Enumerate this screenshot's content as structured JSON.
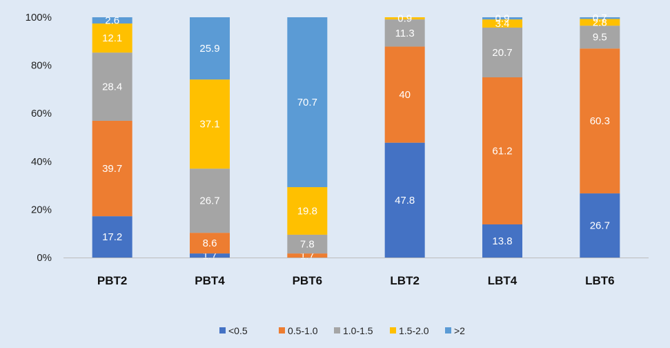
{
  "chart_data": {
    "type": "bar",
    "stacked": true,
    "percent": true,
    "categories": [
      "PBT2",
      "PBT4",
      "PBT6",
      "LBT2",
      "LBT4",
      "LBT6"
    ],
    "series": [
      {
        "name": "<0.5",
        "color": "#4472c4",
        "values": [
          17.2,
          1.7,
          0.0,
          47.8,
          13.8,
          26.7
        ]
      },
      {
        "name": "0.5-1.0",
        "color": "#ed7d31",
        "values": [
          39.7,
          8.6,
          1.7,
          40.0,
          61.2,
          60.3
        ]
      },
      {
        "name": "1.0-1.5",
        "color": "#a5a5a5",
        "values": [
          28.4,
          26.7,
          7.8,
          11.3,
          20.7,
          9.5
        ]
      },
      {
        "name": "1.5-2.0",
        "color": "#ffc000",
        "values": [
          12.1,
          37.1,
          19.8,
          0.9,
          3.4,
          2.8
        ]
      },
      {
        "name": ">2",
        "color": "#5b9bd5",
        "values": [
          2.6,
          25.9,
          70.7,
          0.0,
          0.9,
          0.7
        ]
      }
    ],
    "data_labels": [
      [
        "17.2",
        "39.7",
        "28.4",
        "12.1",
        "2.6"
      ],
      [
        "1.7",
        "8.6",
        "26.7",
        "37.1",
        "25.9"
      ],
      [
        null,
        "1.7",
        "7.8",
        "19.8",
        "70.7"
      ],
      [
        "47.8",
        "40",
        "11.3",
        "0.9",
        null
      ],
      [
        "13.8",
        "61.2",
        "20.7",
        "3.4",
        "0.9"
      ],
      [
        "26.7",
        "60.3",
        "9.5",
        "2.8",
        "0.7"
      ]
    ],
    "yticks": [
      "0%",
      "20%",
      "40%",
      "60%",
      "80%",
      "100%"
    ],
    "ylim": [
      0,
      100
    ],
    "legend_position": "bottom",
    "grid": false
  }
}
